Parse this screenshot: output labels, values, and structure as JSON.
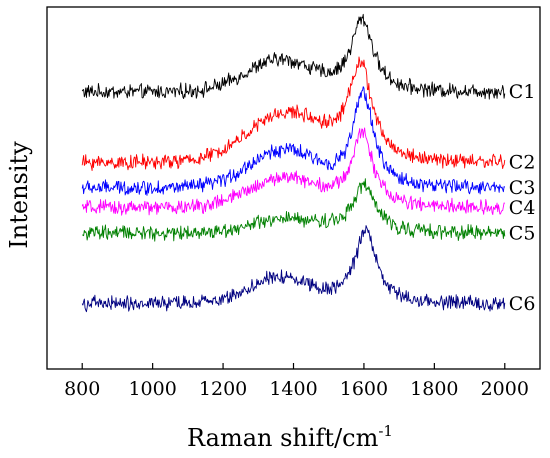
{
  "chart_data": {
    "type": "line",
    "title": "",
    "xlabel": "Raman shift/cm",
    "xlabel_sup": "-1",
    "ylabel": "Intensity",
    "xlim": [
      700,
      2100
    ],
    "ylim": [
      0,
      100
    ],
    "x_ticks": [
      800,
      1000,
      1200,
      1400,
      1600,
      1800,
      2000
    ],
    "x_tick_labels": [
      "800",
      "1000",
      "1200",
      "1400",
      "1600",
      "1800",
      "2000"
    ],
    "y_tick_labels": false,
    "grid": false,
    "legend": "inline labels at right end of each trace",
    "x_range": [
      800,
      2000
    ],
    "noise_amplitude": 1.6,
    "series": [
      {
        "name": "C1",
        "color": "#000000",
        "baseline": 76.5,
        "d_height": 8.5,
        "g_height": 20.0,
        "d_center": 1360,
        "g_center": 1595,
        "d_width": 95,
        "g_width": 38
      },
      {
        "name": "C2",
        "color": "#ff0000",
        "baseline": 57.0,
        "d_height": 13.0,
        "g_height": 26.0,
        "d_center": 1380,
        "g_center": 1590,
        "d_width": 110,
        "g_width": 40
      },
      {
        "name": "C3",
        "color": "#0000ff",
        "baseline": 50.0,
        "d_height": 10.0,
        "g_height": 26.0,
        "d_center": 1370,
        "g_center": 1598,
        "d_width": 95,
        "g_width": 36
      },
      {
        "name": "C4",
        "color": "#ff00ff",
        "baseline": 44.5,
        "d_height": 8.0,
        "g_height": 20.5,
        "d_center": 1375,
        "g_center": 1596,
        "d_width": 100,
        "g_width": 36
      },
      {
        "name": "C5",
        "color": "#008000",
        "baseline": 37.5,
        "d_height": 3.5,
        "g_height": 13.0,
        "d_center": 1380,
        "g_center": 1600,
        "d_width": 100,
        "g_width": 40
      },
      {
        "name": "C6",
        "color": "#000080",
        "baseline": 18.0,
        "d_height": 7.0,
        "g_height": 20.5,
        "d_center": 1365,
        "g_center": 1605,
        "d_width": 90,
        "g_width": 36
      }
    ]
  }
}
